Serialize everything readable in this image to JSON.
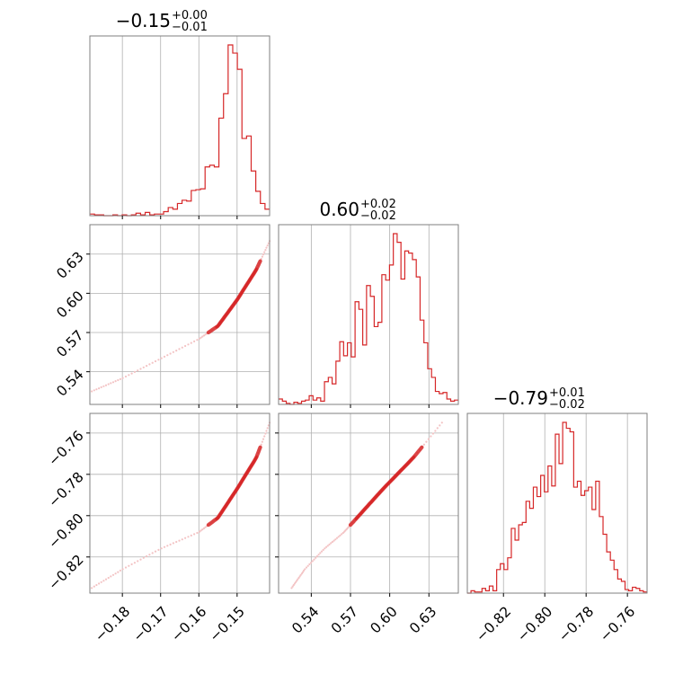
{
  "colors": {
    "series": "#d62728",
    "grid": "#b0b0b0",
    "frame": "#7f7f7f",
    "scatter_light": "#f3c3c4"
  },
  "chart_data": {
    "type": "corner",
    "grid": true,
    "parameters": [
      {
        "title_value": "−0.15",
        "title_plus": "+0.00",
        "title_minus": "−0.01",
        "range": [
          -0.1885,
          -0.1415
        ],
        "ticks": [
          -0.18,
          -0.17,
          -0.16,
          -0.15
        ],
        "tick_labels": [
          "−0.18",
          "−0.17",
          "−0.16",
          "−0.15"
        ]
      },
      {
        "title_value": "0.60",
        "title_plus": "+0.02",
        "title_minus": "−0.02",
        "range": [
          0.515,
          0.6525
        ],
        "ticks": [
          0.54,
          0.57,
          0.6,
          0.63
        ],
        "tick_labels": [
          "0.54",
          "0.57",
          "0.60",
          "0.63"
        ]
      },
      {
        "title_value": "−0.79",
        "title_plus": "+0.01",
        "title_minus": "−0.02",
        "range": [
          -0.8375,
          -0.7505
        ],
        "ticks": [
          -0.82,
          -0.8,
          -0.78,
          -0.76
        ],
        "tick_labels": [
          "−0.82",
          "−0.80",
          "−0.78",
          "−0.76"
        ]
      }
    ],
    "histograms": [
      {
        "parameter": 0,
        "bin_start": -0.1885,
        "bin_end": -0.1415,
        "counts": [
          2,
          1,
          1,
          0,
          0,
          1,
          0,
          1,
          0,
          1,
          3,
          1,
          4,
          1,
          2,
          2,
          5,
          10,
          8,
          15,
          19,
          18,
          31,
          32,
          33,
          60,
          62,
          60,
          120,
          150,
          210,
          200,
          180,
          95,
          98,
          55,
          30,
          15,
          8
        ]
      },
      {
        "parameter": 1,
        "bin_start": 0.515,
        "bin_end": 0.6525,
        "counts": [
          5,
          3,
          1,
          0,
          2,
          1,
          3,
          4,
          8,
          4,
          6,
          3,
          21,
          25,
          19,
          40,
          58,
          45,
          57,
          44,
          95,
          88,
          55,
          110,
          100,
          72,
          76,
          120,
          115,
          129,
          158,
          150,
          116,
          142,
          140,
          134,
          118,
          78,
          57,
          33,
          25,
          12,
          10,
          11,
          5,
          3,
          4
        ]
      },
      {
        "parameter": 2,
        "bin_start": -0.8375,
        "bin_end": -0.7505,
        "counts": [
          0,
          2,
          1,
          1,
          4,
          2,
          6,
          2,
          20,
          25,
          20,
          30,
          55,
          45,
          58,
          60,
          78,
          72,
          90,
          82,
          100,
          86,
          108,
          91,
          135,
          110,
          145,
          140,
          137,
          90,
          95,
          83,
          87,
          90,
          71,
          95,
          65,
          50,
          35,
          28,
          20,
          12,
          10,
          3,
          2,
          5,
          4,
          2,
          1
        ]
      }
    ],
    "joint_relation": "points follow a smooth monotonic curve (near-deterministic dependence between all three parameters)",
    "joint_curve_p0": [
      -0.188,
      -0.18,
      -0.17,
      -0.16,
      -0.155,
      -0.15,
      -0.145,
      -0.1415
    ],
    "joint_curve_p1": [
      0.525,
      0.535,
      0.55,
      0.565,
      0.575,
      0.595,
      0.618,
      0.64
    ],
    "joint_curve_p2": [
      -0.835,
      -0.826,
      -0.816,
      -0.808,
      -0.801,
      -0.787,
      -0.772,
      -0.755
    ]
  }
}
